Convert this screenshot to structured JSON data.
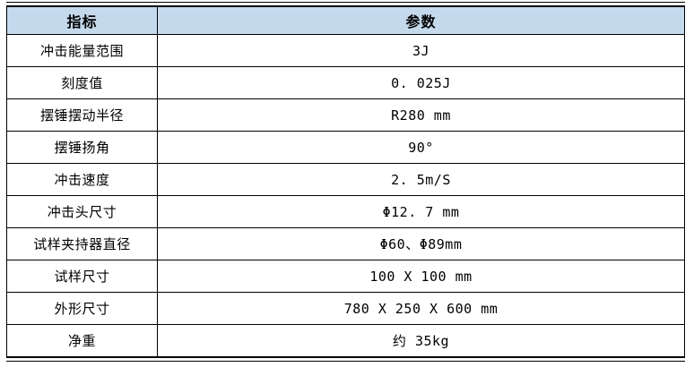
{
  "table": {
    "colors": {
      "header_bg": "#c5d9ed",
      "border": "#000000",
      "text": "#000000"
    },
    "columns": [
      {
        "label": "指标"
      },
      {
        "label": "参数"
      }
    ],
    "rows": [
      {
        "label": "冲击能量范围",
        "value": "3J"
      },
      {
        "label": "刻度值",
        "value": "0. 025J"
      },
      {
        "label": "摆锤摆动半径",
        "value": "R280 mm"
      },
      {
        "label": "摆锤扬角",
        "value": "90°"
      },
      {
        "label": "冲击速度",
        "value": "2. 5m/S"
      },
      {
        "label": "冲击头尺寸",
        "value": "Φ12. 7 mm"
      },
      {
        "label": "试样夹持器直径",
        "value": "Φ60、Φ89mm"
      },
      {
        "label": "试样尺寸",
        "value": "100 X 100 mm"
      },
      {
        "label": "外形尺寸",
        "value": "780 X 250 X 600 mm"
      },
      {
        "label": "净重",
        "value": "约 35kg"
      }
    ]
  }
}
